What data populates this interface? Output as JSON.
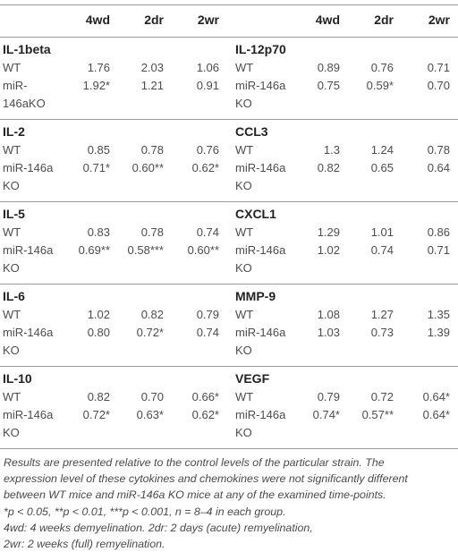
{
  "header": {
    "left": [
      "4wd",
      "2dr",
      "2wr"
    ],
    "right": [
      "4wd",
      "2dr",
      "2wr"
    ]
  },
  "groups": [
    {
      "left": {
        "name": "IL-1beta",
        "rows": [
          {
            "label": [
              "WT"
            ],
            "v": [
              "1.76",
              "2.03",
              "1.06"
            ]
          },
          {
            "label": [
              "miR-",
              "146aKO"
            ],
            "v": [
              "1.92*",
              "1.21",
              "0.91"
            ]
          }
        ]
      },
      "right": {
        "name": "IL-12p70",
        "rows": [
          {
            "label": [
              "WT"
            ],
            "v": [
              "0.89",
              "0.76",
              "0.71"
            ]
          },
          {
            "label": [
              "miR-146a",
              "KO"
            ],
            "v": [
              "0.75",
              "0.59*",
              "0.70"
            ]
          }
        ]
      }
    },
    {
      "left": {
        "name": "IL-2",
        "rows": [
          {
            "label": [
              "WT"
            ],
            "v": [
              "0.85",
              "0.78",
              "0.76"
            ]
          },
          {
            "label": [
              "miR-146a",
              "KO"
            ],
            "v": [
              "0.71*",
              "0.60**",
              "0.62*"
            ]
          }
        ]
      },
      "right": {
        "name": "CCL3",
        "rows": [
          {
            "label": [
              "WT"
            ],
            "v": [
              "1.3",
              "1.24",
              "0.78"
            ]
          },
          {
            "label": [
              "miR-146a",
              "KO"
            ],
            "v": [
              "0.82",
              "0.65",
              "0.64"
            ]
          }
        ]
      }
    },
    {
      "left": {
        "name": "IL-5",
        "rows": [
          {
            "label": [
              "WT"
            ],
            "v": [
              "0.83",
              "0.78",
              "0.74"
            ]
          },
          {
            "label": [
              "miR-146a",
              "KO"
            ],
            "v": [
              "0.69**",
              "0.58***",
              "0.60**"
            ]
          }
        ]
      },
      "right": {
        "name": "CXCL1",
        "rows": [
          {
            "label": [
              "WT"
            ],
            "v": [
              "1.29",
              "1.01",
              "0.86"
            ]
          },
          {
            "label": [
              "miR-146a",
              "KO"
            ],
            "v": [
              "1.02",
              "0.74",
              "0.71"
            ]
          }
        ]
      }
    },
    {
      "left": {
        "name": "IL-6",
        "rows": [
          {
            "label": [
              "WT"
            ],
            "v": [
              "1.02",
              "0.82",
              "0.79"
            ]
          },
          {
            "label": [
              "miR-146a",
              "KO"
            ],
            "v": [
              "0.80",
              "0.72*",
              "0.74"
            ]
          }
        ]
      },
      "right": {
        "name": "MMP-9",
        "rows": [
          {
            "label": [
              "WT"
            ],
            "v": [
              "1.08",
              "1.27",
              "1.35"
            ]
          },
          {
            "label": [
              "miR-146a",
              "KO"
            ],
            "v": [
              "1.03",
              "0.73",
              "1.39"
            ]
          }
        ]
      }
    },
    {
      "left": {
        "name": "IL-10",
        "rows": [
          {
            "label": [
              "WT"
            ],
            "v": [
              "0.82",
              "0.70",
              "0.66*"
            ]
          },
          {
            "label": [
              "miR-146a",
              "KO"
            ],
            "v": [
              "0.72*",
              "0.63*",
              "0.62*"
            ]
          }
        ]
      },
      "right": {
        "name": "VEGF",
        "rows": [
          {
            "label": [
              "WT"
            ],
            "v": [
              "0.79",
              "0.72",
              "0.64*"
            ]
          },
          {
            "label": [
              "miR-146a",
              "KO"
            ],
            "v": [
              "0.74*",
              "0.57**",
              "0.64*"
            ]
          }
        ]
      }
    }
  ],
  "footnotes": [
    "Results are presented relative to the control levels of the particular strain. The",
    "expression level of these cytokines and chemokines were not significantly different",
    "between WT mice and miR-146a KO mice at any of the examined time-points.",
    "*p < 0.05, **p < 0.01, ***p < 0.001, n = 8–4 in each group.",
    "4wd: 4 weeks demyelination. 2dr: 2 days (acute) remyelination,",
    "2wr: 2 weeks (full) remyelination."
  ]
}
